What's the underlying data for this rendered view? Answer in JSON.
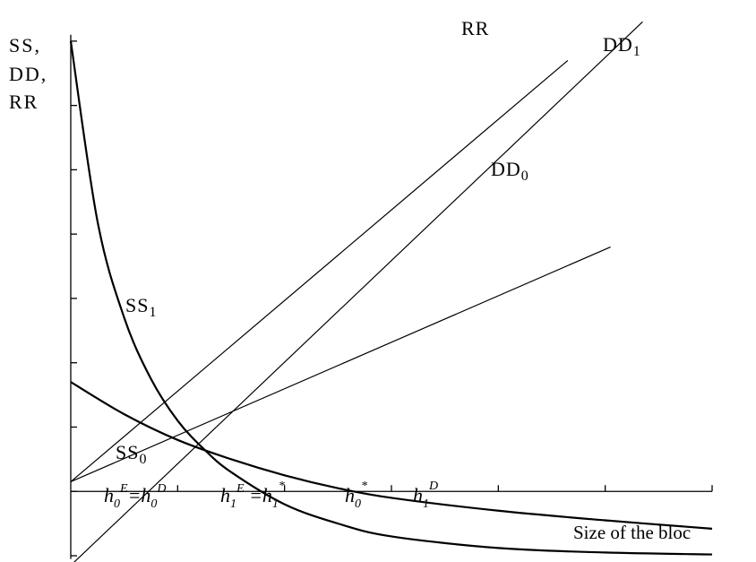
{
  "chart_data": {
    "type": "line",
    "ylabel": [
      "SS,",
      "DD,",
      "RR"
    ],
    "xlabel": "Size of the bloc",
    "x_tick_labels": [
      {
        "main": "h",
        "sub": "0",
        "sup": "E",
        "suffix": "=h"
      },
      {
        "main": "h",
        "sub": "0",
        "sup": "D",
        "suffix": ""
      },
      {
        "main": "h",
        "sub": "1",
        "sup": "E",
        "suffix": " =h"
      },
      {
        "main": "h",
        "sub": "1",
        "sup": "*",
        "suffix": ""
      },
      {
        "main": "h",
        "sub": "0",
        "sup": "*",
        "suffix": ""
      },
      {
        "main": "h",
        "sub": "1",
        "sup": "D",
        "suffix": ""
      }
    ],
    "xlim": [
      0,
      12
    ],
    "ylim": [
      -1,
      7.5
    ],
    "x_ticks": [
      0,
      2,
      4,
      6,
      8,
      10,
      12
    ],
    "y_ticks": [
      -1,
      0,
      1,
      2,
      3,
      4,
      5,
      6,
      7
    ],
    "grid": false,
    "series": [
      {
        "name": "RR",
        "kind": "line",
        "weight": "thin",
        "x": [
          0,
          10.7
        ],
        "y": [
          -1.15,
          7.3
        ]
      },
      {
        "name": "DD1",
        "kind": "line",
        "weight": "thin",
        "x": [
          0,
          9.3
        ],
        "y": [
          0.15,
          6.7
        ]
      },
      {
        "name": "DD0",
        "kind": "line",
        "weight": "thin",
        "x": [
          0,
          10.1
        ],
        "y": [
          0.15,
          3.8
        ]
      },
      {
        "name": "SS1",
        "kind": "curve",
        "weight": "thick",
        "x": [
          0,
          0.5,
          1.0,
          1.5,
          2.0,
          2.5,
          3.0,
          4.0,
          5.0,
          6.0,
          8.0,
          10.0,
          12.0
        ],
        "y": [
          7.0,
          4.2,
          2.7,
          1.75,
          1.1,
          0.65,
          0.3,
          -0.2,
          -0.5,
          -0.7,
          -0.88,
          -0.95,
          -0.98
        ]
      },
      {
        "name": "SS0",
        "kind": "curve",
        "weight": "thick",
        "x": [
          0,
          1.0,
          2.0,
          3.0,
          4.0,
          5.0,
          6.0,
          8.0,
          10.0,
          12.0
        ],
        "y": [
          1.7,
          1.2,
          0.8,
          0.5,
          0.25,
          0.05,
          -0.1,
          -0.3,
          -0.45,
          -0.58
        ]
      }
    ],
    "curve_labels": [
      {
        "series": "RR",
        "main": "RR",
        "sub": ""
      },
      {
        "series": "DD1",
        "main": "DD",
        "sub": "1"
      },
      {
        "series": "DD0",
        "main": "DD",
        "sub": "0"
      },
      {
        "series": "SS1",
        "main": "SS",
        "sub": "1"
      },
      {
        "series": "SS0",
        "main": "SS",
        "sub": "0"
      }
    ]
  }
}
